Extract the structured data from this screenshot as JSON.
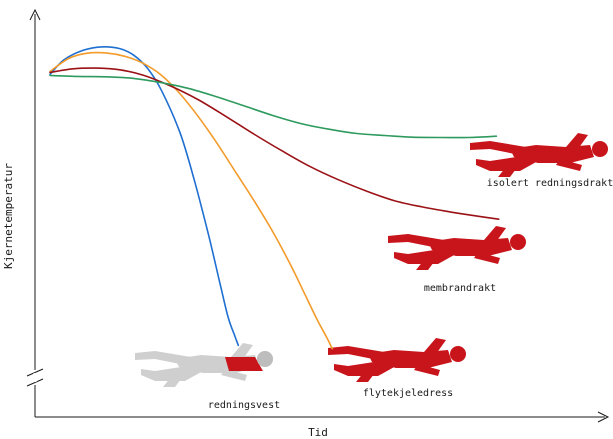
{
  "chart_data": {
    "type": "line",
    "xlabel": "Tid",
    "ylabel": "Kjernetemperatur",
    "xlim": [
      0,
      10
    ],
    "ylim": [
      0,
      10
    ],
    "grid": false,
    "legend": "none",
    "axis_break": "y",
    "series": [
      {
        "name": "redningsvest",
        "color": "#1f6fd1",
        "x": [
          0,
          0.3,
          0.7,
          1.1,
          1.5,
          1.8,
          2.1,
          2.4,
          2.8,
          3.1,
          3.4,
          3.65,
          3.83,
          3.97,
          4.05
        ],
        "y": [
          8.36,
          8.8,
          9.08,
          9.19,
          9.14,
          8.94,
          8.54,
          7.87,
          6.59,
          5.19,
          3.58,
          2.1,
          1.05,
          0.5,
          0.2
        ]
      },
      {
        "name": "flytekjeledress",
        "color": "#f39b2b",
        "x": [
          0,
          0.4,
          0.8,
          1.2,
          1.6,
          2.0,
          2.4,
          2.8,
          3.2,
          3.6,
          4.0,
          4.4,
          4.8,
          5.2,
          5.5,
          5.75,
          5.95,
          6.07
        ],
        "y": [
          8.45,
          8.84,
          9.0,
          9.01,
          8.91,
          8.7,
          8.33,
          7.77,
          7.07,
          6.27,
          5.4,
          4.53,
          3.6,
          2.55,
          1.68,
          0.96,
          0.44,
          0.1
        ]
      },
      {
        "name": "membrandrakt",
        "color": "#9b1216",
        "x": [
          0,
          0.5,
          1.0,
          1.5,
          2.0,
          2.6,
          3.2,
          3.8,
          4.4,
          5.0,
          5.6,
          6.2,
          6.8,
          7.4,
          8.0,
          8.6,
          9.2,
          9.65
        ],
        "y": [
          8.42,
          8.53,
          8.55,
          8.5,
          8.34,
          8.01,
          7.59,
          7.08,
          6.55,
          6.05,
          5.58,
          5.19,
          4.85,
          4.56,
          4.37,
          4.22,
          4.09,
          4.0
        ]
      },
      {
        "name": "isolert redningsdrakt",
        "color": "#2e9a5e",
        "x": [
          0,
          0.6,
          1.2,
          1.8,
          2.4,
          3.0,
          3.6,
          4.2,
          4.8,
          5.4,
          6.0,
          6.6,
          7.2,
          7.8,
          8.4,
          9.0,
          9.6
        ],
        "y": [
          8.33,
          8.3,
          8.29,
          8.24,
          8.11,
          7.93,
          7.68,
          7.4,
          7.12,
          6.88,
          6.71,
          6.58,
          6.52,
          6.47,
          6.46,
          6.46,
          6.5
        ]
      }
    ]
  }
}
